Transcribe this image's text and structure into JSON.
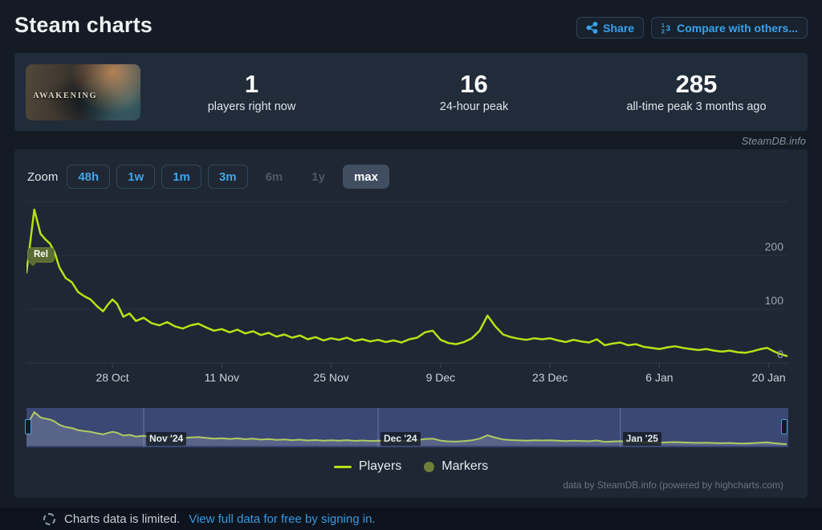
{
  "header": {
    "title": "Steam charts",
    "share_label": "Share",
    "compare_label": "Compare with others..."
  },
  "stats": {
    "game_title": "AWAKENING",
    "items": [
      {
        "value": "1",
        "label": "players right now"
      },
      {
        "value": "16",
        "label": "24-hour peak"
      },
      {
        "value": "285",
        "label": "all-time peak 3 months ago"
      }
    ]
  },
  "watermark": "SteamDB.info",
  "toolbar": {
    "zoom_label": "Zoom",
    "buttons": [
      {
        "label": "48h",
        "state": "enabled"
      },
      {
        "label": "1w",
        "state": "enabled"
      },
      {
        "label": "1m",
        "state": "enabled"
      },
      {
        "label": "3m",
        "state": "enabled"
      },
      {
        "label": "6m",
        "state": "disabled"
      },
      {
        "label": "1y",
        "state": "disabled"
      },
      {
        "label": "max",
        "state": "selected"
      }
    ]
  },
  "chart_data": {
    "type": "line",
    "title": "",
    "xlabel": "",
    "ylabel": "Players",
    "ylim": [
      0,
      300
    ],
    "x_range": [
      "17 Oct 2024",
      "22 Jan 2025"
    ],
    "total_days": 97.5,
    "grid": "horizontal",
    "legend_position": "bottom-center",
    "colors": {
      "line": "#b6e216",
      "marker": "#6f7d39",
      "grid": "#29323f",
      "axis": "#2f3947",
      "navigator_bg": "#3b4774",
      "navigator_line": "#aecb63"
    },
    "y_ticks": [
      {
        "label": "0",
        "value": 0
      },
      {
        "label": "100",
        "value": 100
      },
      {
        "label": "200",
        "value": 200
      }
    ],
    "y_gridlines": [
      0,
      100,
      200,
      300
    ],
    "x_ticks": [
      {
        "label": "28 Oct",
        "day": 11
      },
      {
        "label": "11 Nov",
        "day": 25
      },
      {
        "label": "25 Nov",
        "day": 39
      },
      {
        "label": "9 Dec",
        "day": 53
      },
      {
        "label": "23 Dec",
        "day": 67
      },
      {
        "label": "6 Jan",
        "day": 81
      },
      {
        "label": "20 Jan",
        "day": 95
      }
    ],
    "flags": [
      {
        "label": "Rel",
        "day": 0,
        "value": 168
      }
    ],
    "navigator": {
      "month_labels": [
        {
          "label": "Nov '24",
          "day": 15
        },
        {
          "label": "Dec '24",
          "day": 45
        },
        {
          "label": "Jan '25",
          "day": 76
        }
      ]
    },
    "series": [
      {
        "name": "Players",
        "color": "#b6e216",
        "points": [
          [
            0,
            168
          ],
          [
            1,
            285
          ],
          [
            1.8,
            240
          ],
          [
            2.4,
            230
          ],
          [
            3,
            222
          ],
          [
            3.6,
            206
          ],
          [
            4.2,
            178
          ],
          [
            5,
            158
          ],
          [
            5.8,
            150
          ],
          [
            6.6,
            132
          ],
          [
            7.4,
            124
          ],
          [
            8.2,
            118
          ],
          [
            9,
            106
          ],
          [
            9.8,
            96
          ],
          [
            10.4,
            108
          ],
          [
            11,
            118
          ],
          [
            11.6,
            110
          ],
          [
            12.4,
            86
          ],
          [
            13.2,
            92
          ],
          [
            14,
            78
          ],
          [
            15,
            84
          ],
          [
            16,
            74
          ],
          [
            17,
            70
          ],
          [
            18,
            76
          ],
          [
            19,
            68
          ],
          [
            20,
            64
          ],
          [
            21,
            70
          ],
          [
            22,
            73
          ],
          [
            23,
            66
          ],
          [
            24,
            60
          ],
          [
            25,
            63
          ],
          [
            26,
            57
          ],
          [
            27,
            62
          ],
          [
            28,
            55
          ],
          [
            29,
            59
          ],
          [
            30,
            52
          ],
          [
            31,
            56
          ],
          [
            32,
            49
          ],
          [
            33,
            53
          ],
          [
            34,
            47
          ],
          [
            35,
            51
          ],
          [
            36,
            44
          ],
          [
            37,
            48
          ],
          [
            38,
            42
          ],
          [
            39,
            46
          ],
          [
            40,
            43
          ],
          [
            41,
            47
          ],
          [
            42,
            41
          ],
          [
            43,
            44
          ],
          [
            44,
            40
          ],
          [
            45,
            43
          ],
          [
            46,
            39
          ],
          [
            47,
            42
          ],
          [
            48,
            38
          ],
          [
            49,
            44
          ],
          [
            50,
            47
          ],
          [
            51,
            57
          ],
          [
            52,
            60
          ],
          [
            53,
            43
          ],
          [
            54,
            37
          ],
          [
            55,
            35
          ],
          [
            56,
            39
          ],
          [
            57,
            46
          ],
          [
            58,
            60
          ],
          [
            59,
            88
          ],
          [
            60,
            68
          ],
          [
            61,
            53
          ],
          [
            62,
            48
          ],
          [
            63,
            45
          ],
          [
            64,
            43
          ],
          [
            65,
            46
          ],
          [
            66,
            44
          ],
          [
            67,
            46
          ],
          [
            68,
            42
          ],
          [
            69,
            39
          ],
          [
            70,
            43
          ],
          [
            71,
            40
          ],
          [
            72,
            38
          ],
          [
            73,
            44
          ],
          [
            74,
            33
          ],
          [
            75,
            36
          ],
          [
            76,
            38
          ],
          [
            77,
            33
          ],
          [
            78,
            35
          ],
          [
            79,
            30
          ],
          [
            80,
            28
          ],
          [
            81,
            26
          ],
          [
            82,
            29
          ],
          [
            83,
            31
          ],
          [
            84,
            28
          ],
          [
            85,
            26
          ],
          [
            86,
            24
          ],
          [
            87,
            26
          ],
          [
            88,
            23
          ],
          [
            89,
            21
          ],
          [
            90,
            23
          ],
          [
            91,
            20
          ],
          [
            92,
            19
          ],
          [
            93,
            22
          ],
          [
            94,
            26
          ],
          [
            94.8,
            28
          ],
          [
            95.6,
            22
          ],
          [
            96.4,
            17
          ],
          [
            97.3,
            13
          ]
        ]
      },
      {
        "name": "Markers",
        "color": "#6f7d39",
        "points": []
      }
    ]
  },
  "legend": {
    "players": "Players",
    "markers": "Markers"
  },
  "attribution": "data by SteamDB.info (powered by highcharts.com)",
  "footer": {
    "notice": "Charts data is limited.",
    "link": "View full data for free by signing in."
  }
}
